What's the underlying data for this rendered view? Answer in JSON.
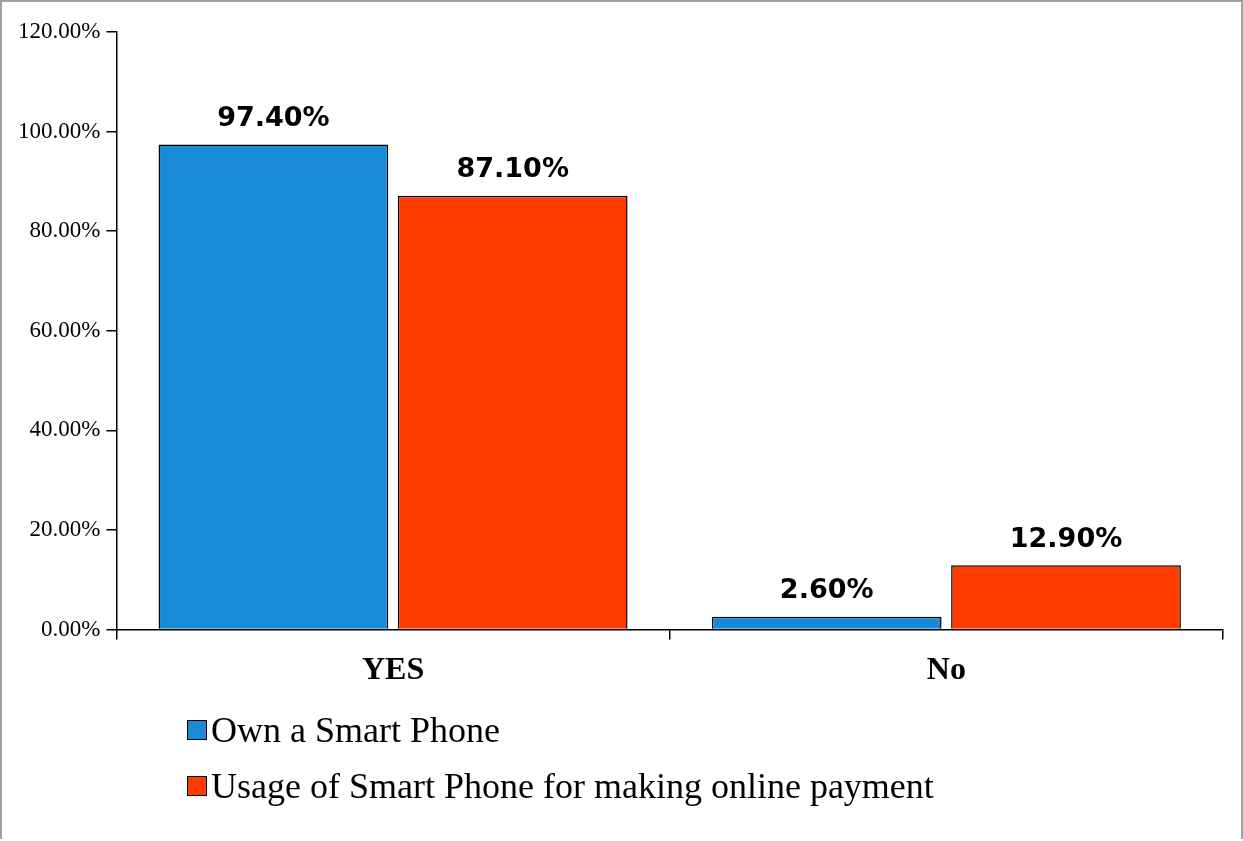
{
  "chart_data": {
    "type": "bar",
    "categories": [
      "YES",
      "No"
    ],
    "series": [
      {
        "name": "Own a Smart Phone",
        "color": "#1a8ad8",
        "values": [
          97.4,
          2.6
        ],
        "value_labels": [
          "97.40%",
          "2.60%"
        ]
      },
      {
        "name": "Usage of Smart Phone for making online payment",
        "color": "#ff3b00",
        "values": [
          87.1,
          12.9
        ],
        "value_labels": [
          "87.10%",
          "12.90%"
        ]
      }
    ],
    "ylim": [
      0,
      120
    ],
    "yticks": [
      {
        "value": 0,
        "label": "0.00%"
      },
      {
        "value": 20,
        "label": "20.00%"
      },
      {
        "value": 40,
        "label": "40.00%"
      },
      {
        "value": 60,
        "label": "60.00%"
      },
      {
        "value": 80,
        "label": "80.00%"
      },
      {
        "value": 100,
        "label": "100.00%"
      },
      {
        "value": 120,
        "label": "120.00%"
      }
    ],
    "grid": false,
    "legend": "bottom"
  }
}
